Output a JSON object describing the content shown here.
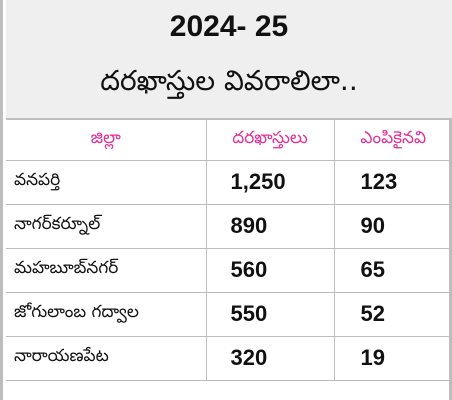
{
  "header": {
    "title": "2024- 25",
    "subtitle": "దరఖాస్తుల వివరాలిలా.."
  },
  "table": {
    "columns": [
      "జిల్లా",
      "దరఖాస్తులు",
      "ఎంపికైనవి"
    ],
    "rows": [
      {
        "district": "వనపర్తి",
        "applications": "1,250",
        "selected": "123"
      },
      {
        "district": "నాగర్‌కర్నూల్",
        "applications": "890",
        "selected": "90"
      },
      {
        "district": "మహబూబ్‌నగర్",
        "applications": "560",
        "selected": "65"
      },
      {
        "district": "జోగులాంబ గద్వాల",
        "applications": "550",
        "selected": "52"
      },
      {
        "district": "నారాయణపేట",
        "applications": "320",
        "selected": "19"
      }
    ]
  },
  "colors": {
    "header_text": "#e0309a",
    "header_bg": "#efefef",
    "border": "#bdbdbd"
  }
}
